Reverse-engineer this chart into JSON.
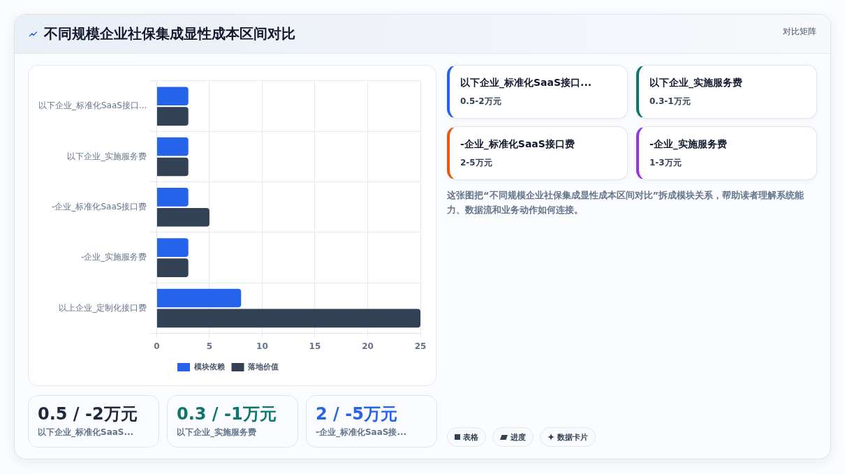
{
  "chart_data": [
    {
      "type": "bar",
      "title": "不同规模企业社保集成显性成本区间对比",
      "orientation": "horizontal",
      "categories": [
        "以下企业_标准化SaaS接口...",
        "以下企业_实施服务费",
        "-企业_标准化SaaS接口费",
        "-企业_实施服务费",
        "以上企业_定制化接口费"
      ],
      "series": [
        {
          "name": "模块依赖",
          "color": "#2563eb",
          "values": [
            3,
            3,
            3,
            3,
            8
          ]
        },
        {
          "name": "落地价值",
          "color": "#334155",
          "values": [
            3,
            3,
            5,
            3,
            25
          ]
        }
      ],
      "xlim": [
        0,
        25
      ],
      "xticks": [
        0,
        5,
        10,
        15,
        20,
        25
      ],
      "grid": true,
      "legend": "bottom"
    },
    {
      "type": "other",
      "annotations": [
        "对比矩阵"
      ]
    },
    {
      "type": "other",
      "annotations": [
        "以下企业_标准化SaaS接口...",
        "0.5-2万元",
        "以下企业_实施服务费",
        "0.3-1万元",
        "-企业_标准化SaaS接口费",
        "2-5万元",
        "-企业_实施服务费",
        "1-3万元"
      ]
    },
    {
      "type": "other",
      "annotations": [
        "这张图把“不同规模企业社保集成显性成本区间对比”拆成模块关系，帮助读者理解系统能力、数据流和业务动作如何连接。"
      ]
    },
    {
      "type": "other",
      "annotations": [
        "0.5 / -2万元",
        "以下企业_标准化SaaS...",
        "0.3 / -1万元",
        "以下企业_实施服务费",
        "2 / -5万元",
        "-企业_标准化SaaS接..."
      ]
    },
    {
      "type": "other",
      "annotations": [
        "表格",
        "进度",
        "数据卡片"
      ]
    }
  ]
}
